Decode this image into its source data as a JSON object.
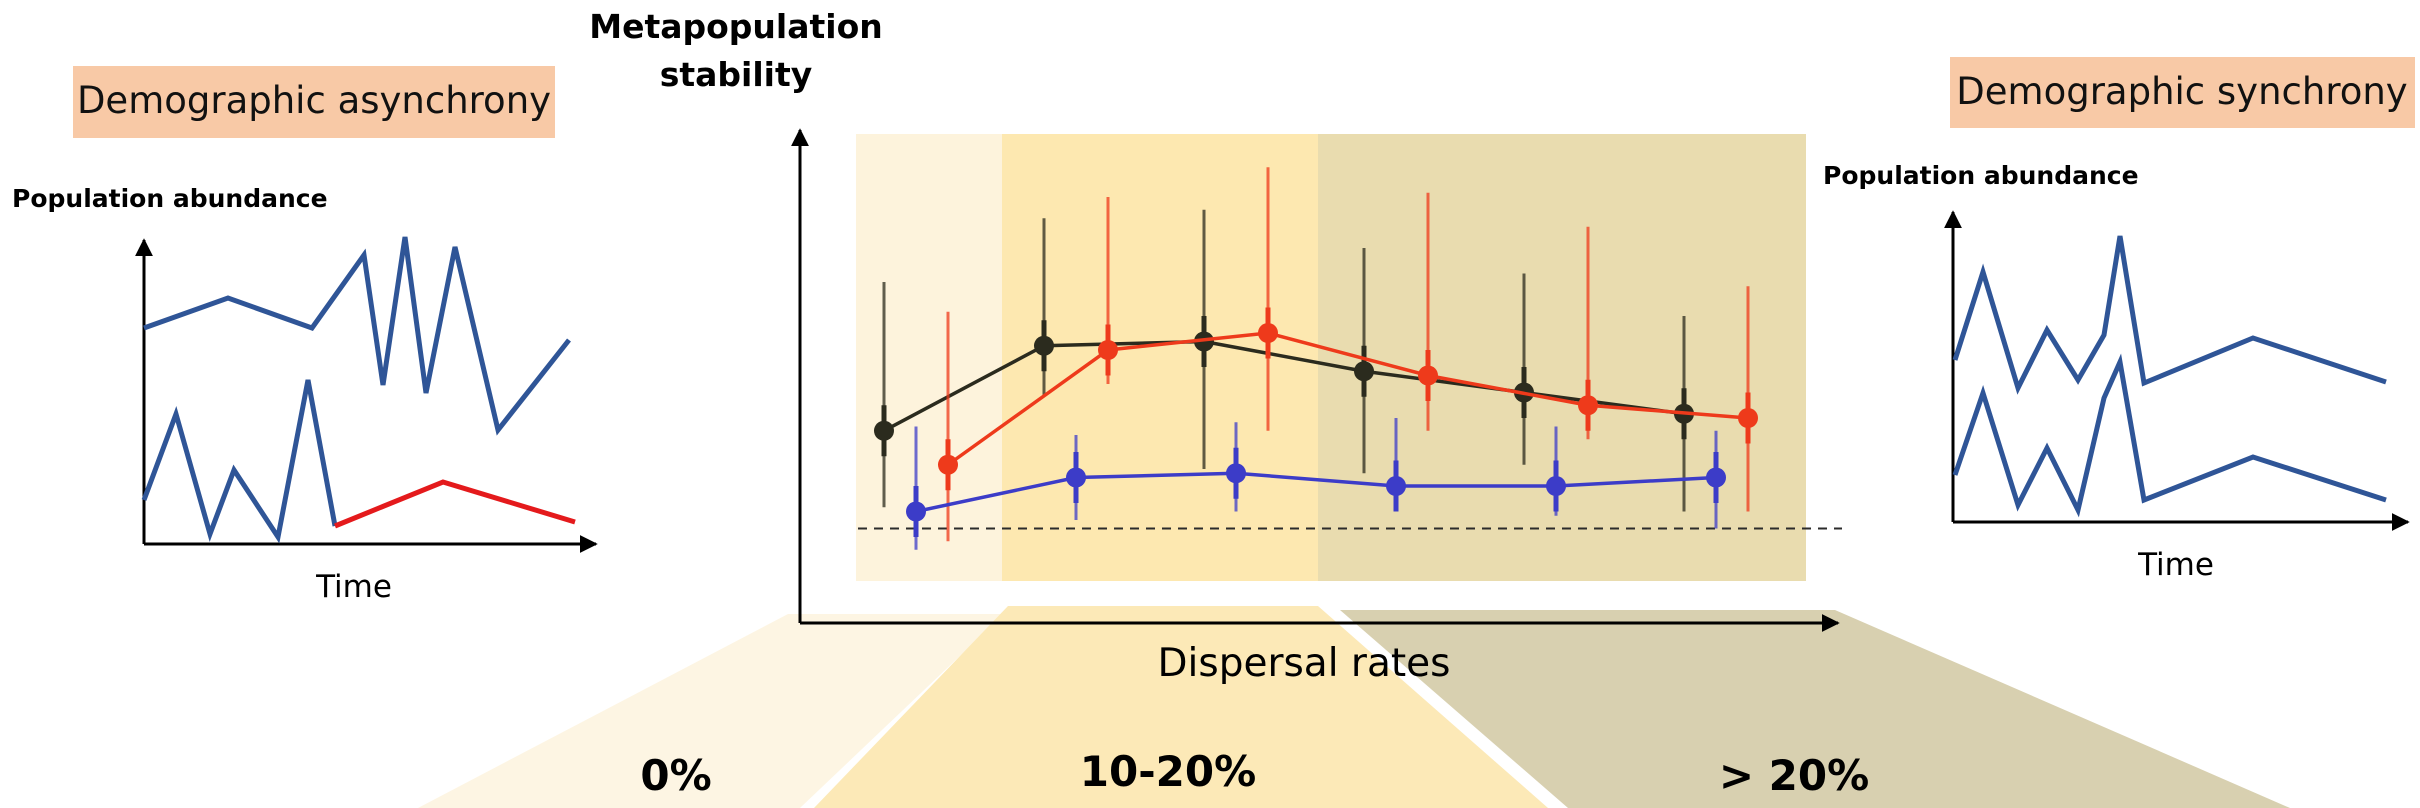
{
  "left_panel": {
    "badge": "Demographic asynchrony",
    "y_label": "Population abundance",
    "x_label": "Time"
  },
  "right_panel": {
    "badge": "Demographic synchrony",
    "y_label": "Population abundance",
    "x_label": "Time"
  },
  "center": {
    "y_label_line1": "Metapopulation",
    "y_label_line2": "stability",
    "x_label": "Dispersal rates"
  },
  "bands": [
    {
      "label": "0%"
    },
    {
      "label": "10-20%"
    },
    {
      "label": "> 20%"
    }
  ],
  "colors": {
    "badge_bg": "#f8c9a6",
    "band_light": "#fdf3dc",
    "band_mid": "#fde8b0",
    "band_dark": "#e9dcaf",
    "trap_light": "#fdf5e3",
    "trap_mid": "#fce9b7",
    "trap_dark": "#d8d0b0",
    "series_black": "#2b2b1e",
    "series_red": "#ee3a1b",
    "series_blue": "#3c3cc8",
    "sketch_blue": "#2f5597",
    "sketch_red": "#e41a1c"
  },
  "chart_data": {
    "type": "line",
    "x_categories": [
      1,
      2,
      3,
      4,
      5,
      6
    ],
    "ylim": [
      0,
      1
    ],
    "reference_line": 0.1,
    "series": [
      {
        "color": "black",
        "x": [
          1,
          2,
          3,
          4,
          5,
          6
        ],
        "y": [
          0.33,
          0.53,
          0.54,
          0.47,
          0.42,
          0.37
        ],
        "err_lo": [
          0.15,
          0.41,
          0.24,
          0.23,
          0.25,
          0.14
        ],
        "err_hi": [
          0.68,
          0.83,
          0.85,
          0.76,
          0.7,
          0.6
        ]
      },
      {
        "color": "red",
        "x": [
          1.4,
          2.4,
          3.4,
          4.4,
          5.4,
          6.4
        ],
        "y": [
          0.25,
          0.52,
          0.56,
          0.46,
          0.39,
          0.36
        ],
        "err_lo": [
          0.07,
          0.44,
          0.33,
          0.33,
          0.31,
          0.14
        ],
        "err_hi": [
          0.61,
          0.88,
          0.95,
          0.89,
          0.81,
          0.67
        ]
      },
      {
        "color": "blue",
        "x": [
          1.2,
          2.2,
          3.2,
          4.2,
          5.2,
          6.2
        ],
        "y": [
          0.14,
          0.22,
          0.23,
          0.2,
          0.2,
          0.22
        ],
        "err_lo": [
          0.05,
          0.12,
          0.14,
          0.14,
          0.13,
          0.1
        ],
        "err_hi": [
          0.34,
          0.32,
          0.35,
          0.36,
          0.34,
          0.33
        ]
      }
    ]
  }
}
